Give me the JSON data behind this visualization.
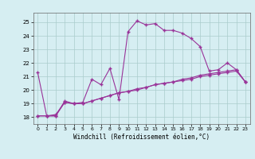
{
  "xlabel": "Windchill (Refroidissement éolien,°C)",
  "ylabel": "",
  "bg_color": "#d6eef2",
  "line_color": "#993399",
  "grid_color": "#aacccc",
  "xlim": [
    -0.5,
    23.5
  ],
  "ylim": [
    17.5,
    25.7
  ],
  "xticks": [
    0,
    1,
    2,
    3,
    4,
    5,
    6,
    7,
    8,
    9,
    10,
    11,
    12,
    13,
    14,
    15,
    16,
    17,
    18,
    19,
    20,
    21,
    22,
    23
  ],
  "yticks": [
    18,
    19,
    20,
    21,
    22,
    23,
    24,
    25
  ],
  "line1_x": [
    0,
    1,
    2,
    3,
    4,
    5,
    6,
    7,
    8,
    9,
    10,
    11,
    12,
    13,
    14,
    15,
    16,
    17,
    18,
    19,
    20,
    21,
    22,
    23
  ],
  "line1_y": [
    21.3,
    18.1,
    18.1,
    19.2,
    19.0,
    19.1,
    20.8,
    20.4,
    21.6,
    19.3,
    24.3,
    25.1,
    24.8,
    24.9,
    24.4,
    24.4,
    24.2,
    23.8,
    23.2,
    21.4,
    21.5,
    22.0,
    21.5,
    20.6
  ],
  "line2_x": [
    0,
    1,
    2,
    3,
    4,
    5,
    6,
    7,
    8,
    9,
    10,
    11,
    12,
    13,
    14,
    15,
    16,
    17,
    18,
    19,
    20,
    21,
    22,
    23
  ],
  "line2_y": [
    18.1,
    18.1,
    18.2,
    19.1,
    19.0,
    19.0,
    19.2,
    19.4,
    19.6,
    19.8,
    19.9,
    20.0,
    20.2,
    20.4,
    20.5,
    20.6,
    20.7,
    20.8,
    21.0,
    21.1,
    21.2,
    21.3,
    21.4,
    20.6
  ],
  "line3_x": [
    0,
    1,
    2,
    3,
    4,
    5,
    6,
    7,
    8,
    9,
    10,
    11,
    12,
    13,
    14,
    15,
    16,
    17,
    18,
    19,
    20,
    21,
    22,
    23
  ],
  "line3_y": [
    18.1,
    18.1,
    18.1,
    19.1,
    19.0,
    19.0,
    19.2,
    19.4,
    19.6,
    19.8,
    19.9,
    20.1,
    20.2,
    20.4,
    20.5,
    20.6,
    20.8,
    20.9,
    21.1,
    21.2,
    21.3,
    21.4,
    21.5,
    20.6
  ],
  "marker": "+"
}
